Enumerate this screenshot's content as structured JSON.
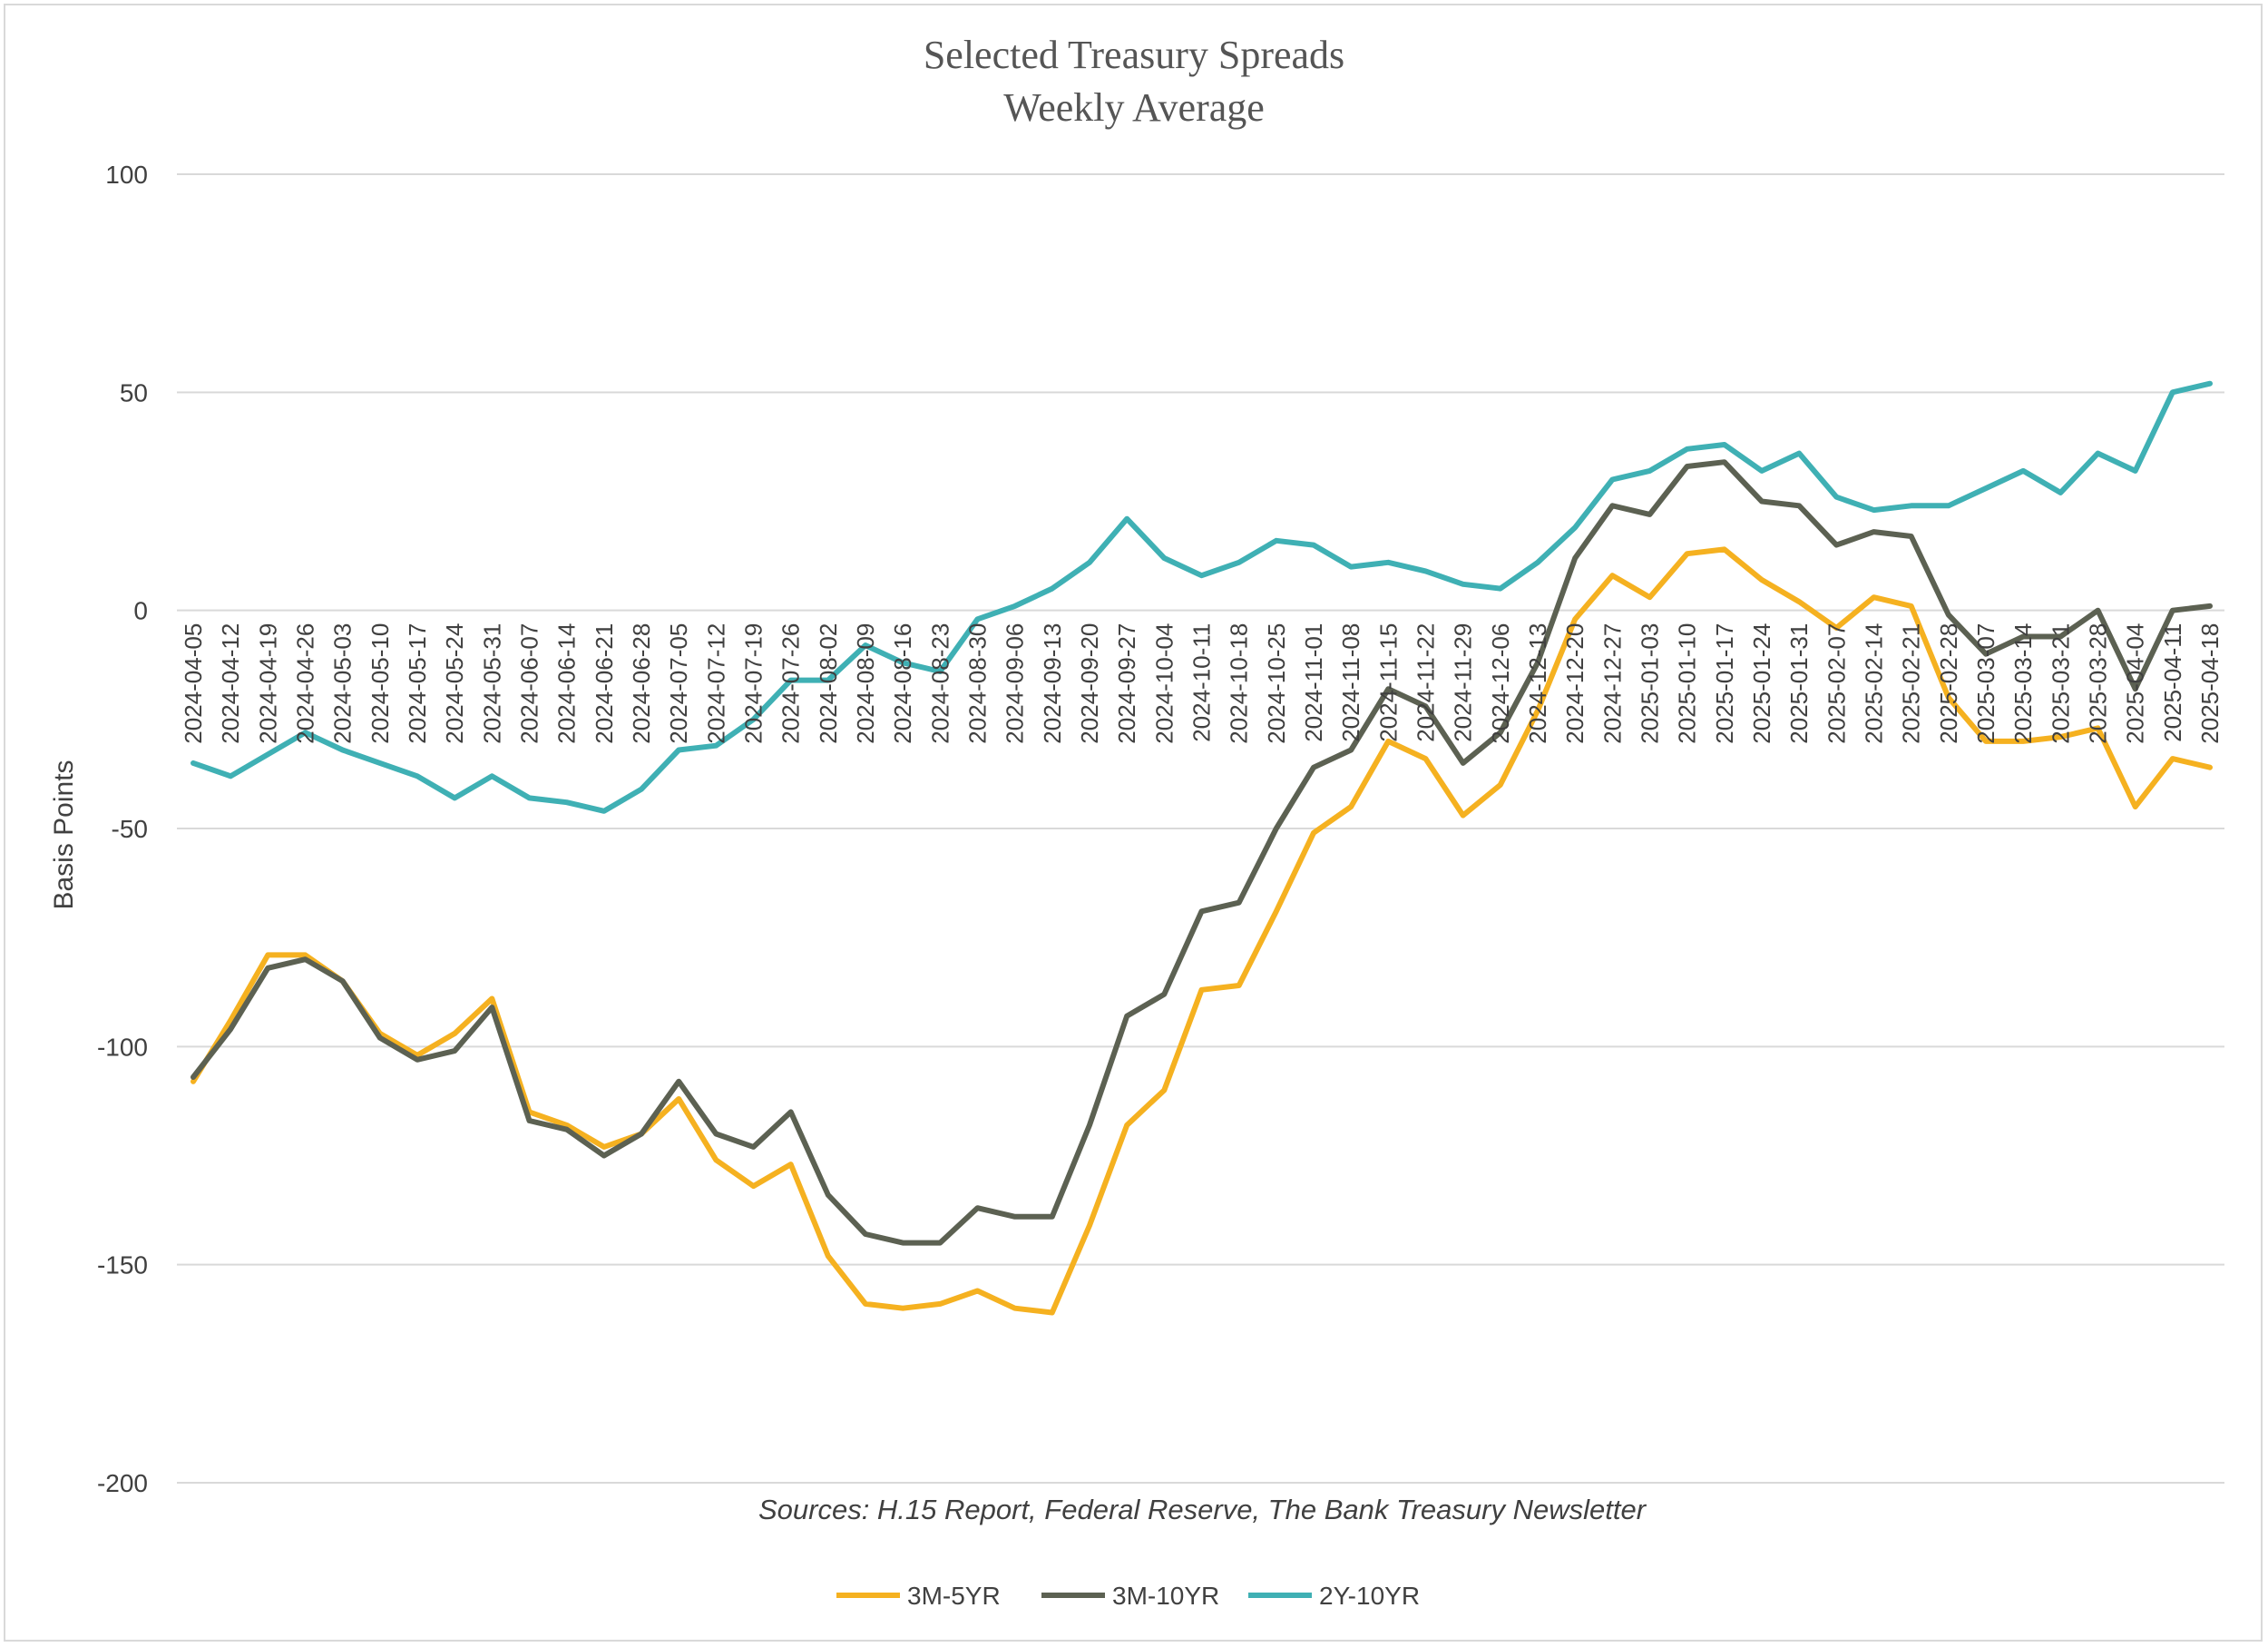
{
  "chart_data": {
    "type": "line",
    "title": "Selected Treasury Spreads",
    "subtitle": "Weekly Average",
    "xlabel": "",
    "ylabel": "Basis Points",
    "ylim": [
      -200,
      100
    ],
    "yticks": [
      100,
      50,
      0,
      -50,
      -100,
      -150,
      -200
    ],
    "ytick_labels": [
      "100",
      "50",
      "0",
      "-50",
      "-100",
      "-150",
      "-200"
    ],
    "grid": true,
    "legend": "bottom",
    "source": "Sources: H.15 Report, Federal Reserve, The Bank Treasury Newsletter",
    "categories": [
      "2024-04-05",
      "2024-04-12",
      "2024-04-19",
      "2024-04-26",
      "2024-05-03",
      "2024-05-10",
      "2024-05-17",
      "2024-05-24",
      "2024-05-31",
      "2024-06-07",
      "2024-06-14",
      "2024-06-21",
      "2024-06-28",
      "2024-07-05",
      "2024-07-12",
      "2024-07-19",
      "2024-07-26",
      "2024-08-02",
      "2024-08-09",
      "2024-08-16",
      "2024-08-23",
      "2024-08-30",
      "2024-09-06",
      "2024-09-13",
      "2024-09-20",
      "2024-09-27",
      "2024-10-04",
      "2024-10-11",
      "2024-10-18",
      "2024-10-25",
      "2024-11-01",
      "2024-11-08",
      "2024-11-15",
      "2024-11-22",
      "2024-11-29",
      "2024-12-06",
      "2024-12-13",
      "2024-12-20",
      "2024-12-27",
      "2025-01-03",
      "2025-01-10",
      "2025-01-17",
      "2025-01-24",
      "2025-01-31",
      "2025-02-07",
      "2025-02-14",
      "2025-02-21",
      "2025-02-28",
      "2025-03-07",
      "2025-03-14",
      "2025-03-21",
      "2025-03-28",
      "2025-04-04",
      "2025-04-11",
      "2025-04-18"
    ],
    "series": [
      {
        "name": "3M-5YR",
        "color": "#f5b120",
        "values": [
          -108,
          -94,
          -79,
          -79,
          -85,
          -97,
          -102,
          -97,
          -89,
          -115,
          -118,
          -123,
          -120,
          -112,
          -126,
          -132,
          -127,
          -148,
          -159,
          -160,
          -159,
          -156,
          -160,
          -161,
          -141,
          -118,
          -110,
          -87,
          -86,
          -69,
          -51,
          -45,
          -30,
          -34,
          -47,
          -40,
          -23,
          -2,
          8,
          3,
          13,
          14,
          7,
          2,
          -4,
          3,
          1,
          -20,
          -30,
          -30,
          -29,
          -27,
          -45,
          -34,
          -36
        ]
      },
      {
        "name": "3M-10YR",
        "color": "#5c6152",
        "values": [
          -107,
          -96,
          -82,
          -80,
          -85,
          -98,
          -103,
          -101,
          -91,
          -117,
          -119,
          -125,
          -120,
          -108,
          -120,
          -123,
          -115,
          -134,
          -143,
          -145,
          -145,
          -137,
          -139,
          -139,
          -118,
          -93,
          -88,
          -69,
          -67,
          -50,
          -36,
          -32,
          -18,
          -22,
          -35,
          -28,
          -12,
          12,
          24,
          22,
          33,
          34,
          25,
          24,
          15,
          18,
          17,
          -1,
          -10,
          -6,
          -6,
          0,
          -18,
          0,
          1
        ]
      },
      {
        "name": "2Y-10YR",
        "color": "#3fb0b4",
        "values": [
          -35,
          -38,
          -33,
          -28,
          -32,
          -35,
          -38,
          -43,
          -38,
          -43,
          -44,
          -46,
          -41,
          -32,
          -31,
          -25,
          -16,
          -16,
          -8,
          -12,
          -14,
          -2,
          1,
          5,
          11,
          21,
          12,
          8,
          11,
          16,
          15,
          10,
          11,
          9,
          6,
          5,
          11,
          19,
          30,
          32,
          37,
          38,
          32,
          36,
          26,
          23,
          24,
          24,
          28,
          32,
          27,
          36,
          32,
          50,
          52
        ]
      }
    ]
  }
}
